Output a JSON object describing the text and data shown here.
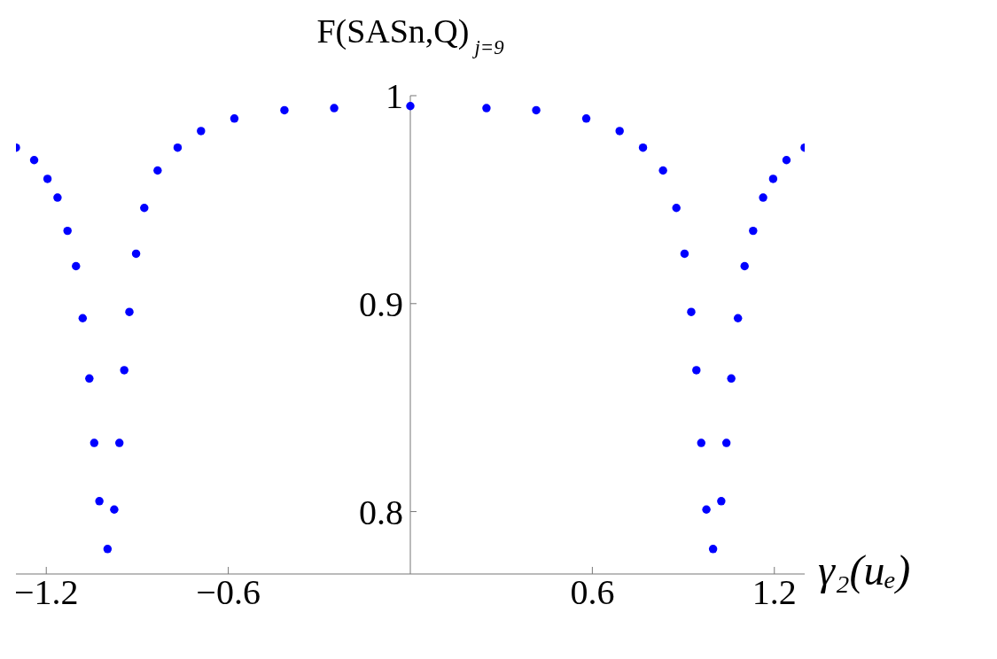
{
  "chart_data": {
    "type": "scatter",
    "title": "F(SASn,Q)$_{j=9}$",
    "xlabel": "γ₂(uₑ)",
    "marker": "circle",
    "xlim": [
      -1.3,
      1.3
    ],
    "ylim": [
      0.77,
      1.0
    ],
    "xticks": [
      -1.2,
      -0.6,
      0.6,
      1.2
    ],
    "yticks": [
      0.8,
      0.9,
      1
    ],
    "series": [
      {
        "color": "#0000ff",
        "x": [
          -1.3,
          -1.24,
          -1.196,
          -1.163,
          -1.13,
          -1.102,
          -1.08,
          -1.058,
          -1.042,
          -1.025,
          -0.998,
          -0.976,
          -0.959,
          -0.943,
          -0.926,
          -0.904,
          -0.877,
          -0.833,
          -0.767,
          -0.69,
          -0.58,
          -0.415,
          -0.251,
          0,
          0.251,
          0.415,
          0.58,
          0.69,
          0.767,
          0.833,
          0.877,
          0.904,
          0.926,
          0.943,
          0.959,
          0.976,
          0.998,
          1.025,
          1.042,
          1.058,
          1.08,
          1.102,
          1.13,
          1.163,
          1.196,
          1.24,
          1.3
        ],
        "values": [
          0.975,
          0.969,
          0.96,
          0.951,
          0.935,
          0.918,
          0.893,
          0.864,
          0.833,
          0.805,
          0.782,
          0.801,
          0.833,
          0.868,
          0.896,
          0.924,
          0.946,
          0.964,
          0.975,
          0.983,
          0.989,
          0.993,
          0.994,
          0.995,
          0.994,
          0.993,
          0.989,
          0.983,
          0.975,
          0.964,
          0.946,
          0.924,
          0.896,
          0.868,
          0.833,
          0.801,
          0.782,
          0.805,
          0.833,
          0.864,
          0.893,
          0.918,
          0.935,
          0.951,
          0.96,
          0.969,
          0.975
        ]
      }
    ]
  }
}
